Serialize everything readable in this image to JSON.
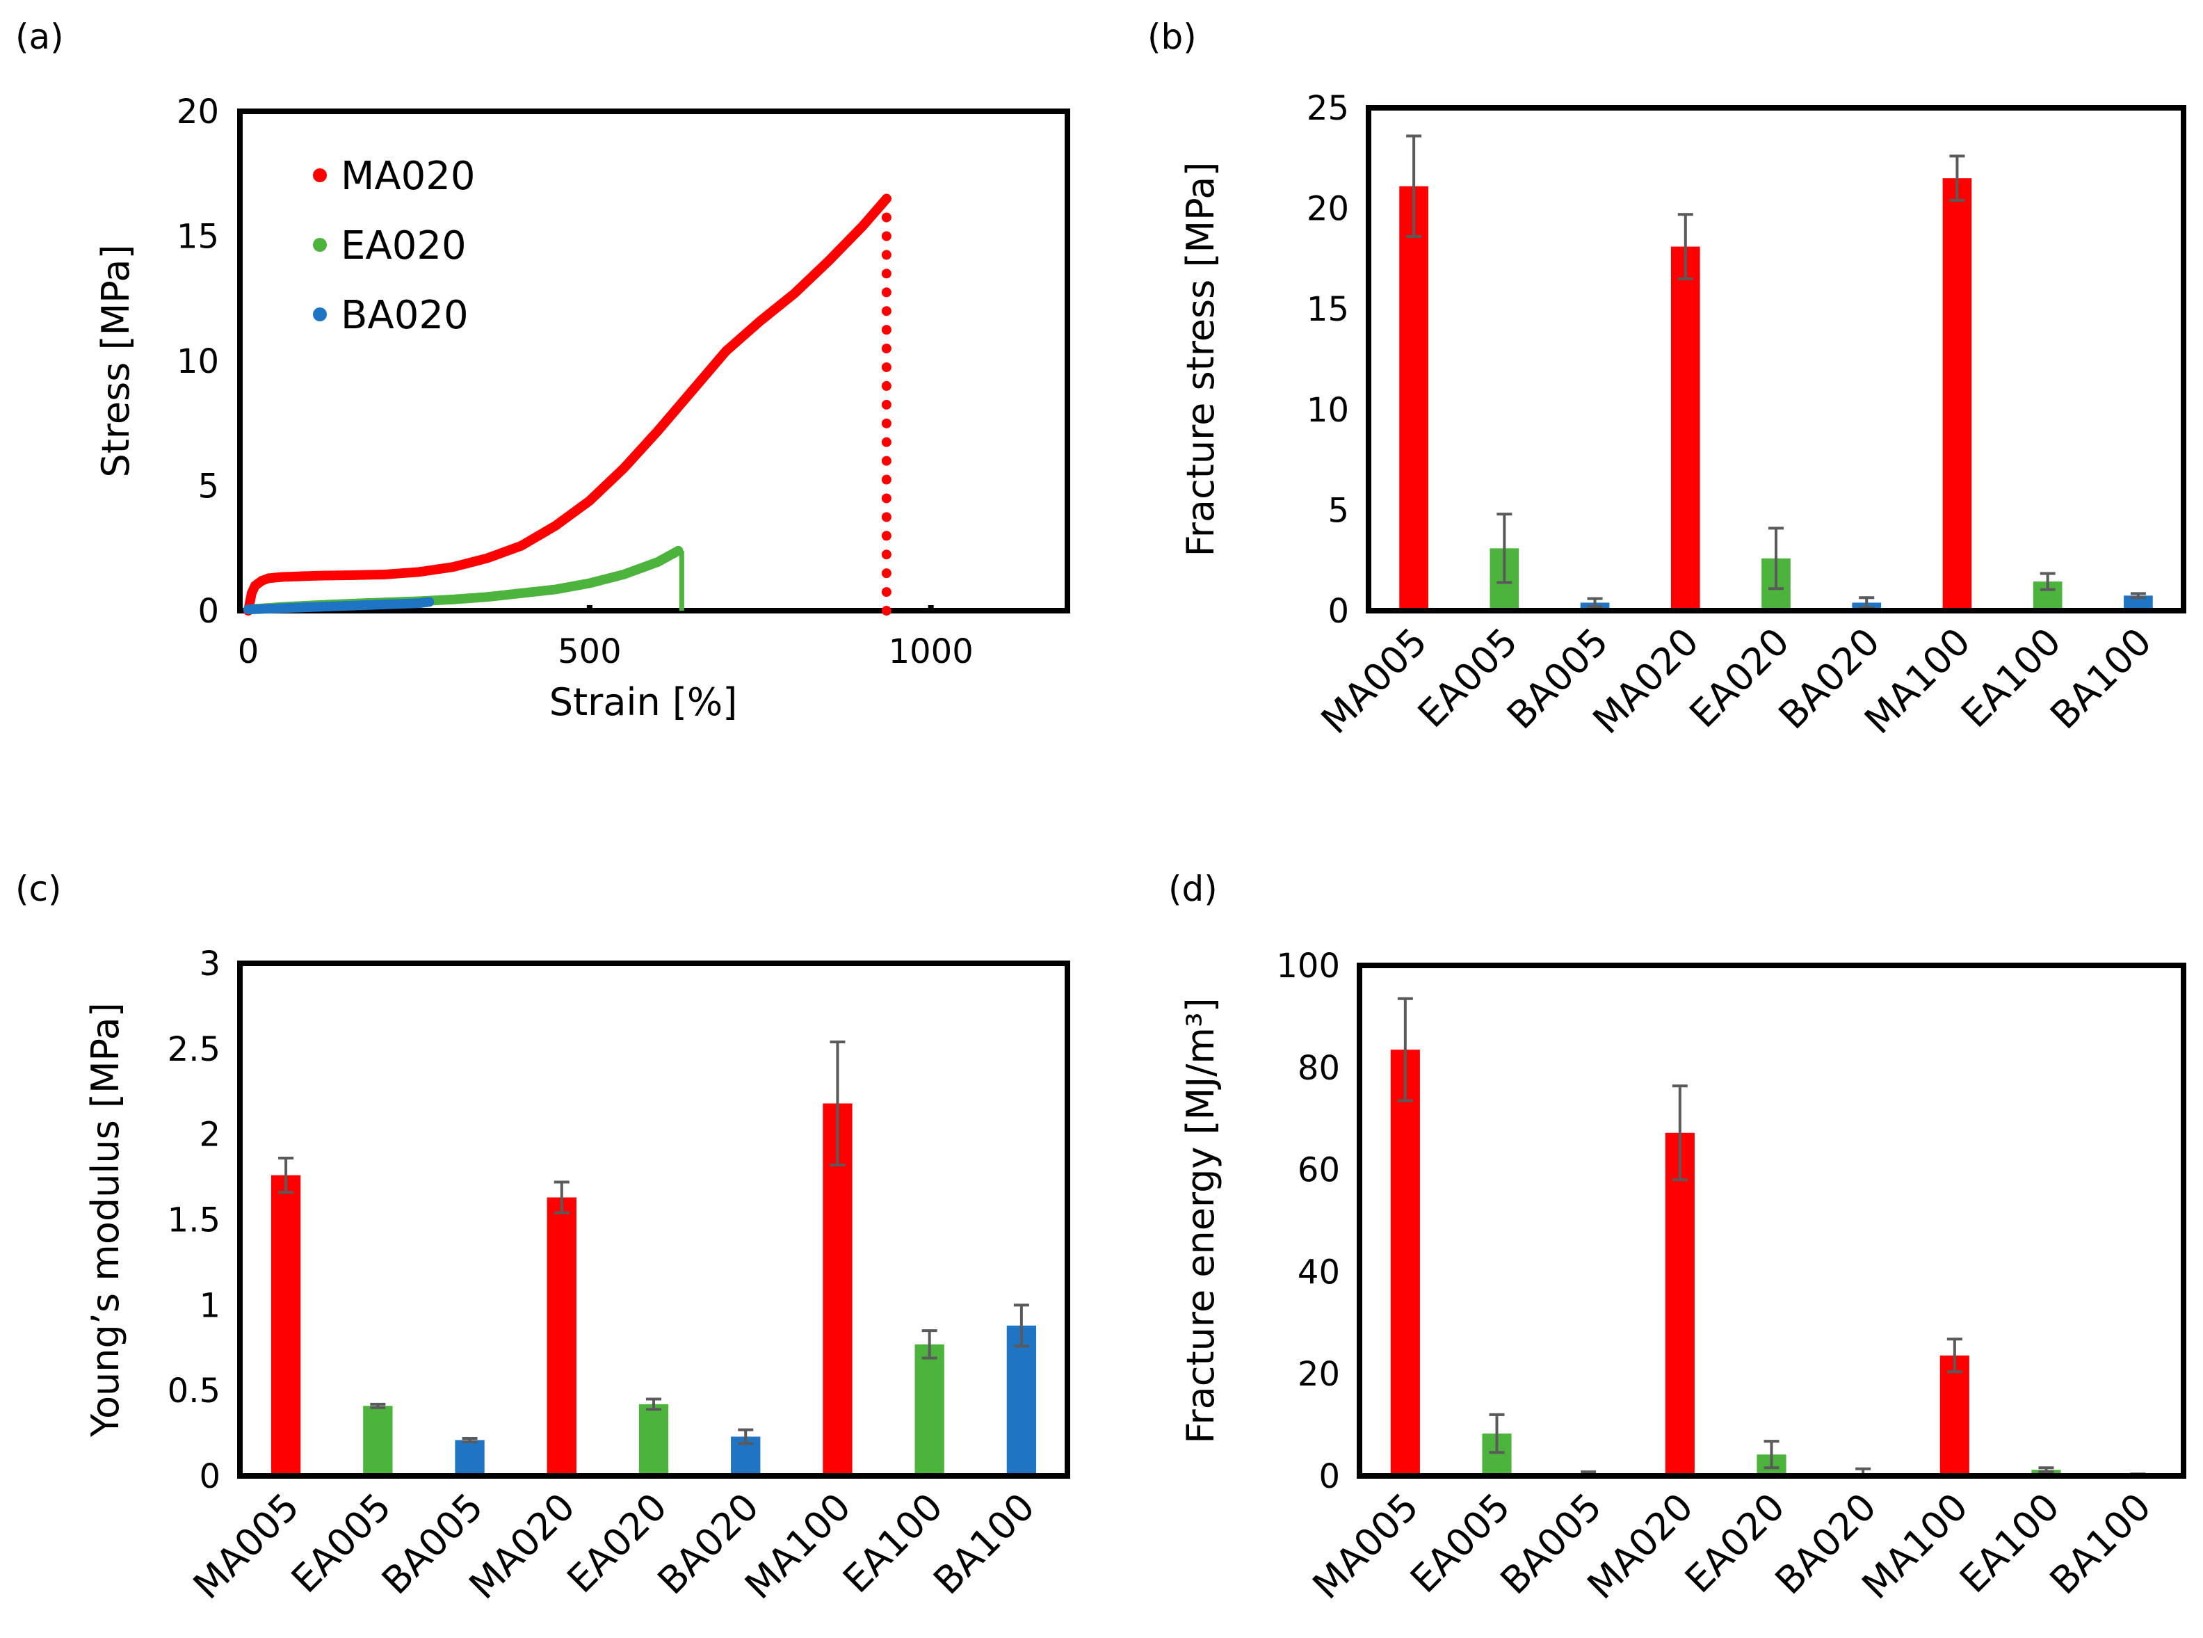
{
  "colors": {
    "MA": "#ff0000",
    "EA": "#4cb43c",
    "BA": "#1f74c4",
    "err": "#5a5a5a"
  },
  "chart_data": [
    {
      "panel": "(a)",
      "type": "scatter",
      "xlabel": "Strain [%]",
      "ylabel": "Stress [MPa]",
      "xlim": [
        0,
        1200
      ],
      "ylim": [
        0,
        20
      ],
      "xticks": [
        0,
        500,
        1000
      ],
      "yticks": [
        0,
        5,
        10,
        15,
        20
      ],
      "legend": "top-left",
      "series": [
        {
          "name": "MA020",
          "color": "#ff0000",
          "x": [
            0,
            5,
            10,
            20,
            30,
            50,
            100,
            150,
            200,
            250,
            300,
            350,
            400,
            450,
            500,
            550,
            600,
            650,
            700,
            750,
            800,
            850,
            900,
            935
          ],
          "y": [
            0,
            0.7,
            1.0,
            1.2,
            1.3,
            1.35,
            1.4,
            1.42,
            1.45,
            1.55,
            1.75,
            2.1,
            2.6,
            3.4,
            4.4,
            5.7,
            7.2,
            8.8,
            10.4,
            11.6,
            12.7,
            14.0,
            15.4,
            16.5
          ]
        },
        {
          "name": "EA020",
          "color": "#4cb43c",
          "x": [
            0,
            50,
            100,
            150,
            200,
            250,
            300,
            350,
            400,
            450,
            500,
            550,
            600,
            630
          ],
          "y": [
            0.05,
            0.15,
            0.22,
            0.28,
            0.33,
            0.38,
            0.45,
            0.55,
            0.7,
            0.85,
            1.1,
            1.45,
            1.95,
            2.4
          ]
        },
        {
          "name": "BA020",
          "color": "#1f74c4",
          "x": [
            0,
            50,
            100,
            150,
            200,
            250,
            265
          ],
          "y": [
            0.05,
            0.1,
            0.15,
            0.2,
            0.25,
            0.3,
            0.35
          ]
        }
      ],
      "annotations": [
        {
          "series": "MA020",
          "type": "break-line",
          "x": 935,
          "from": 16.5,
          "to": 0
        },
        {
          "series": "EA020",
          "type": "break-line",
          "x": 635,
          "from": 2.4,
          "to": 0
        }
      ]
    },
    {
      "panel": "(b)",
      "type": "bar",
      "ylabel": "Fracture stress [MPa]",
      "ylim": [
        0,
        25
      ],
      "yticks": [
        0,
        5,
        10,
        15,
        20,
        25
      ],
      "categories": [
        "MA005",
        "EA005",
        "BA005",
        "MA020",
        "EA020",
        "BA020",
        "MA100",
        "EA100",
        "BA100"
      ],
      "values": [
        21.1,
        3.1,
        0.4,
        18.1,
        2.6,
        0.4,
        21.5,
        1.45,
        0.75
      ],
      "errors": [
        2.5,
        1.7,
        0.2,
        1.6,
        1.5,
        0.25,
        1.1,
        0.4,
        0.1
      ]
    },
    {
      "panel": "(c)",
      "type": "bar",
      "ylabel": "Young’s modulus [MPa]",
      "ylim": [
        0,
        3
      ],
      "yticks": [
        "0",
        "0.5",
        "1",
        "1.5",
        "2",
        "2.5",
        "3"
      ],
      "categories": [
        "MA005",
        "EA005",
        "BA005",
        "MA020",
        "EA020",
        "BA020",
        "MA100",
        "EA100",
        "BA100"
      ],
      "values": [
        1.76,
        0.41,
        0.21,
        1.63,
        0.42,
        0.23,
        2.18,
        0.77,
        0.88
      ],
      "errors": [
        0.1,
        0.01,
        0.01,
        0.09,
        0.03,
        0.04,
        0.36,
        0.08,
        0.12
      ]
    },
    {
      "panel": "(d)",
      "type": "bar",
      "ylabel": "Fracture energy  [MJ/m³]",
      "ylim": [
        0,
        100
      ],
      "yticks": [
        0,
        20,
        40,
        60,
        80,
        100
      ],
      "categories": [
        "MA005",
        "EA005",
        "BA005",
        "MA020",
        "EA020",
        "BA020",
        "MA100",
        "EA100",
        "BA100"
      ],
      "values": [
        83.5,
        8.3,
        0.5,
        67.2,
        4.2,
        0.4,
        23.6,
        1.2,
        0.3
      ],
      "errors": [
        10,
        3.7,
        0.3,
        9.2,
        2.6,
        1.0,
        3.2,
        0.4,
        0.1
      ]
    }
  ]
}
